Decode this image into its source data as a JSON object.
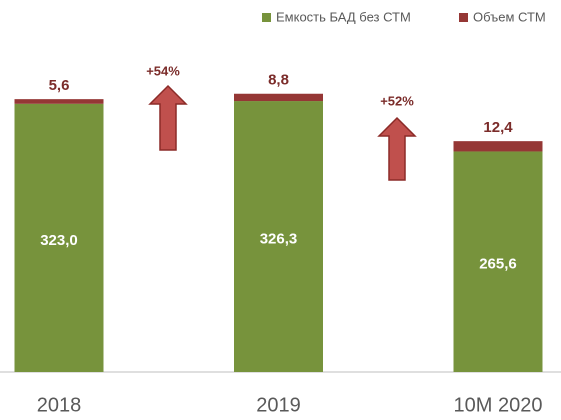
{
  "chart_data": {
    "type": "stacked_bar",
    "categories": [
      "2018",
      "2019",
      "10M 2020"
    ],
    "series": [
      {
        "name": "Емкость БАД без СТМ",
        "color": "#77933c",
        "values": [
          323.0,
          326.3,
          265.6
        ],
        "value_labels": [
          "323,0",
          "326,3",
          "265,6"
        ]
      },
      {
        "name": "Объем СТМ",
        "color": "#953735",
        "values": [
          5.6,
          8.8,
          12.4
        ],
        "value_labels": [
          "5,6",
          "8,8",
          "12,4"
        ]
      }
    ],
    "ylim": [
      0,
      448
    ],
    "legend": "top-right",
    "annotations": [
      "+54%",
      "+52%"
    ]
  }
}
